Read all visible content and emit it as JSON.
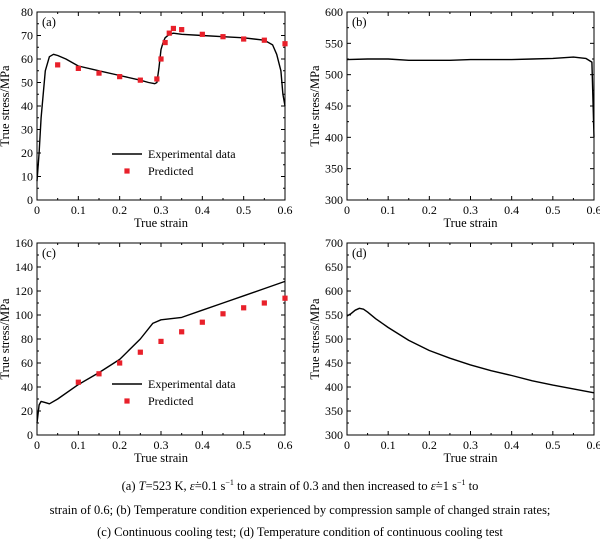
{
  "chart_data": [
    {
      "panel": "(a)",
      "type": "line",
      "xlabel": "True strain",
      "ylabel": "True stress/MPa",
      "xlim": [
        0,
        0.6
      ],
      "ylim": [
        0,
        80
      ],
      "xticks": [
        "0",
        "0.1",
        "0.2",
        "0.3",
        "0.4",
        "0.5",
        "0.6"
      ],
      "yticks": [
        "0",
        "10",
        "20",
        "30",
        "40",
        "50",
        "60",
        "70",
        "80"
      ],
      "legend": {
        "position": "bottom-center",
        "entries": [
          "Experimental data",
          "Predicted"
        ]
      },
      "series": [
        {
          "name": "Experimental data",
          "style": "line",
          "x": [
            0,
            0.005,
            0.01,
            0.02,
            0.03,
            0.04,
            0.05,
            0.07,
            0.1,
            0.15,
            0.2,
            0.25,
            0.27,
            0.285,
            0.29,
            0.295,
            0.3,
            0.305,
            0.31,
            0.32,
            0.33,
            0.35,
            0.4,
            0.45,
            0.5,
            0.55,
            0.57,
            0.58,
            0.59,
            0.595,
            0.6
          ],
          "y": [
            8,
            20,
            35,
            55,
            61,
            62,
            61.5,
            60,
            57,
            55,
            53,
            51,
            50,
            49.5,
            50,
            56,
            64,
            67,
            69,
            70.5,
            71,
            70.5,
            70,
            69.5,
            69,
            68,
            66,
            62,
            55,
            45,
            40
          ]
        },
        {
          "name": "Predicted",
          "style": "marker",
          "x": [
            0.05,
            0.1,
            0.15,
            0.2,
            0.25,
            0.29,
            0.3,
            0.31,
            0.32,
            0.33,
            0.35,
            0.4,
            0.45,
            0.5,
            0.55,
            0.6
          ],
          "y": [
            57.5,
            56,
            54,
            52.5,
            51,
            51.5,
            60,
            67,
            71,
            73,
            72.5,
            70.5,
            69.5,
            68.5,
            68,
            66.5
          ]
        }
      ]
    },
    {
      "panel": "(b)",
      "type": "line",
      "xlabel": "True strain",
      "ylabel": "True stress/MPa",
      "xlim": [
        0,
        0.6
      ],
      "ylim": [
        300,
        600
      ],
      "xticks": [
        "0",
        "0.1",
        "0.2",
        "0.3",
        "0.4",
        "0.5",
        "0.6"
      ],
      "yticks": [
        "300",
        "350",
        "400",
        "450",
        "500",
        "550",
        "600"
      ],
      "series": [
        {
          "style": "line",
          "x": [
            0,
            0.05,
            0.1,
            0.15,
            0.2,
            0.25,
            0.3,
            0.35,
            0.4,
            0.45,
            0.5,
            0.55,
            0.58,
            0.595,
            0.6
          ],
          "y": [
            524,
            525,
            525,
            523,
            523,
            523,
            524,
            524,
            524,
            525,
            526,
            528,
            526,
            520,
            400
          ]
        }
      ]
    },
    {
      "panel": "(c)",
      "type": "line",
      "xlabel": "True strain",
      "ylabel": "True stress/MPa",
      "xlim": [
        0,
        0.6
      ],
      "ylim": [
        0,
        160
      ],
      "xticks": [
        "0",
        "0.1",
        "0.2",
        "0.3",
        "0.4",
        "0.5",
        "0.6"
      ],
      "yticks": [
        "0",
        "20",
        "40",
        "60",
        "80",
        "100",
        "120",
        "140",
        "160"
      ],
      "legend": {
        "position": "bottom-right",
        "entries": [
          "Experimental data",
          "Predicted"
        ]
      },
      "series": [
        {
          "name": "Experimental data",
          "style": "line",
          "x": [
            0,
            0.005,
            0.01,
            0.02,
            0.03,
            0.05,
            0.1,
            0.15,
            0.2,
            0.25,
            0.28,
            0.3,
            0.35,
            0.4,
            0.45,
            0.5,
            0.55,
            0.6
          ],
          "y": [
            10,
            25,
            28,
            27,
            26,
            30,
            42,
            52,
            63,
            80,
            93,
            96,
            98,
            104,
            110,
            116,
            122,
            128
          ]
        },
        {
          "name": "Predicted",
          "style": "marker",
          "x": [
            0.1,
            0.15,
            0.2,
            0.25,
            0.3,
            0.35,
            0.4,
            0.45,
            0.5,
            0.55,
            0.6
          ],
          "y": [
            44,
            51,
            60,
            69,
            78,
            86,
            94,
            101,
            106,
            110,
            114
          ]
        }
      ]
    },
    {
      "panel": "(d)",
      "type": "line",
      "xlabel": "True strain",
      "ylabel": "True stress/MPa",
      "xlim": [
        0,
        0.6
      ],
      "ylim": [
        300,
        700
      ],
      "xticks": [
        "0",
        "0.1",
        "0.2",
        "0.3",
        "0.4",
        "0.5",
        "0.6"
      ],
      "yticks": [
        "300",
        "350",
        "400",
        "450",
        "500",
        "550",
        "600",
        "650",
        "700"
      ],
      "series": [
        {
          "style": "line",
          "x": [
            0,
            0.01,
            0.02,
            0.03,
            0.04,
            0.05,
            0.07,
            0.1,
            0.15,
            0.2,
            0.25,
            0.3,
            0.35,
            0.4,
            0.45,
            0.5,
            0.55,
            0.6
          ],
          "y": [
            548,
            553,
            560,
            564,
            562,
            556,
            542,
            524,
            497,
            476,
            460,
            446,
            434,
            424,
            413,
            404,
            396,
            388
          ]
        }
      ]
    }
  ],
  "caption": {
    "line1_a": "(a) ",
    "line1_T": "T",
    "line1_b": "=523 K,  ",
    "epsilon": "ε̇",
    "line1_c": "=0.1 s",
    "sup_neg1": "−1",
    "line1_d": " to a strain of 0.3 and then increased to  ",
    "line1_e": "=1 s",
    "line1_f": " to",
    "line2": "strain of 0.6; (b) Temperature condition experienced by compression sample of changed strain rates;",
    "line3": "(c) Continuous cooling test; (d) Temperature condition of continuous cooling test"
  },
  "colors": {
    "line": "#000000",
    "marker": "#e8202a",
    "axis": "#000000"
  }
}
